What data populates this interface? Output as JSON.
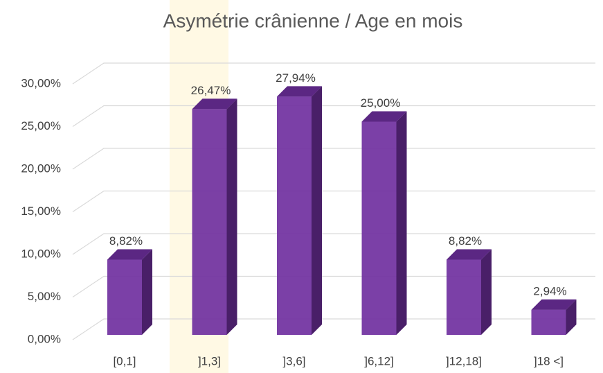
{
  "chart_data": {
    "type": "bar3d",
    "title": "Asymétrie crânienne / Age en mois",
    "categories": [
      "[0,1]",
      "]1,3]",
      "]3,6]",
      "]6,12]",
      "]12,18]",
      "]18 <]"
    ],
    "values": [
      8.82,
      26.47,
      27.94,
      25.0,
      8.82,
      2.94
    ],
    "value_labels": [
      "8,82%",
      "26,47%",
      "27,94%",
      "25,00%",
      "8,82%",
      "2,94%"
    ],
    "color": "#7030a0",
    "ylim": [
      0,
      30
    ],
    "yticks": [
      {
        "value": 0,
        "label": "0,00%"
      },
      {
        "value": 5,
        "label": "5,00%"
      },
      {
        "value": 10,
        "label": "10,00%"
      },
      {
        "value": 15,
        "label": "15,00%"
      },
      {
        "value": 20,
        "label": "20,00%"
      },
      {
        "value": 25,
        "label": "25,00%"
      },
      {
        "value": 30,
        "label": "30,00%"
      }
    ],
    "grid": true
  }
}
